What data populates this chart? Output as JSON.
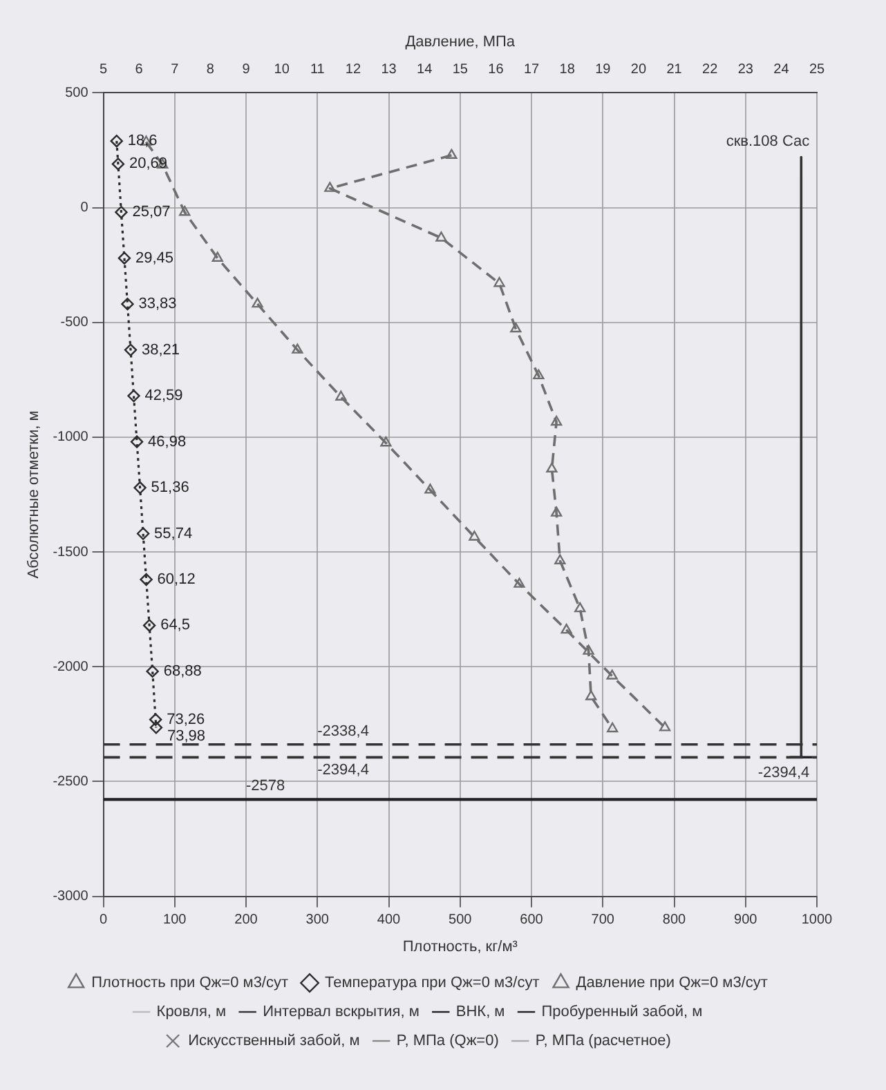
{
  "chart_data": {
    "type": "line",
    "xlabel": "Плотность, кг/м³",
    "ylabel": "Абсолютные отметки, м",
    "x2label": "Давление, МПа",
    "xlim": [
      0,
      1000
    ],
    "xticks": [
      0,
      100,
      200,
      300,
      400,
      500,
      600,
      700,
      800,
      900,
      1000
    ],
    "x2lim": [
      5,
      25
    ],
    "x2ticks": [
      5,
      6,
      7,
      8,
      9,
      10,
      11,
      12,
      13,
      14,
      15,
      16,
      17,
      18,
      19,
      20,
      21,
      22,
      23,
      24,
      25
    ],
    "ylim": [
      -3000,
      500
    ],
    "yticks": [
      500,
      0,
      -500,
      -1000,
      -1500,
      -2000,
      -2500,
      -3000
    ],
    "grid": true,
    "legend": "bottom",
    "series": [
      {
        "name": "Плотность при Qж=0 м3/сут",
        "color": "#6e6e6e",
        "marker": "triangle",
        "line_style": "dashed",
        "x": [
          60,
          83,
          114,
          160,
          216,
          272,
          333,
          396,
          458,
          520,
          583,
          649,
          713,
          787
        ],
        "values": [
          286,
          186,
          -20,
          -220,
          -420,
          -620,
          -825,
          -1025,
          -1230,
          -1435,
          -1640,
          -1840,
          -2040,
          -2265
        ]
      },
      {
        "name": "Температура при Qж=0 м3/сут",
        "color": "#2b2b2b",
        "marker": "diamond",
        "line_style": "dotted",
        "x": [
          18.6,
          20.69,
          25.07,
          29.45,
          33.83,
          38.21,
          42.59,
          46.98,
          51.36,
          55.74,
          60.12,
          64.5,
          68.88,
          73.26,
          73.98
        ],
        "values": [
          290,
          190,
          -20,
          -220,
          -420,
          -620,
          -820,
          -1020,
          -1220,
          -1420,
          -1620,
          -1820,
          -2020,
          -2230,
          -2265
        ]
      },
      {
        "name": "Давление при Qж=0 м3/сут",
        "axis": "x2",
        "color": "#6e6e6e",
        "marker": "triangle",
        "line_style": "dashed",
        "x": [
          14.76,
          11.35,
          14.47,
          16.1,
          16.56,
          17.2,
          17.7,
          17.57,
          17.7,
          17.8,
          18.36,
          18.6,
          18.67,
          19.27
        ],
        "values": [
          228,
          84,
          -132,
          -330,
          -528,
          -732,
          -934,
          -1138,
          -1330,
          -1538,
          -1747,
          -1932,
          -2130,
          -2270
        ]
      },
      {
        "name": "Кровля, м",
        "color": "#bbbbbb",
        "line_style": "solid"
      },
      {
        "name": "Интервал вскрытия, м",
        "color": "#333333",
        "line_style": "dashed"
      },
      {
        "name": "ВНК, м",
        "color": "#222222",
        "line_style": "solid"
      },
      {
        "name": "Пробуренный забой, м",
        "color": "#222222",
        "line_style": "solid",
        "x": [
          962,
          994
        ],
        "values": [
          -2394,
          -2394
        ]
      },
      {
        "name": "Искусственный забой, м",
        "type": "scatter",
        "color": "#777777",
        "marker": "cross"
      },
      {
        "name": "P, МПа (Qж=0)",
        "color": "#888888",
        "line_style": "solid"
      },
      {
        "name": "P, МПа (расчетное)",
        "color": "#aaaaaa",
        "line_style": "dotted"
      },
      {
        "color": "#333333",
        "line_style": "solid",
        "x": [
          978,
          978
        ],
        "values": [
          220,
          -2394
        ]
      }
    ],
    "ref_lines": [
      {
        "axis": "y",
        "value": -2338.4,
        "label": "-2338,4",
        "color": "#333333",
        "line_style": "dashed"
      },
      {
        "axis": "y",
        "value": -2394.4,
        "label": "-2394,4",
        "color": "#333333",
        "line_style": "dashed"
      },
      {
        "axis": "y",
        "value": -2578,
        "label": "-2578",
        "color": "#222222",
        "line_style": "solid"
      }
    ],
    "annotations": [
      {
        "text": "скв.108 Сас",
        "x": 978,
        "y": 220
      },
      {
        "text": "-2394,4",
        "x": 978,
        "y": -2394
      },
      {
        "text": "18,6",
        "x": 18.6,
        "y": 290
      },
      {
        "text": "20,69",
        "x": 20.69,
        "y": 190
      },
      {
        "text": "25,07",
        "x": 25.07,
        "y": -20
      },
      {
        "text": "29,45",
        "x": 29.45,
        "y": -220
      },
      {
        "text": "33,83",
        "x": 33.83,
        "y": -420
      },
      {
        "text": "38,21",
        "x": 38.21,
        "y": -620
      },
      {
        "text": "42,59",
        "x": 42.59,
        "y": -820
      },
      {
        "text": "46,98",
        "x": 46.98,
        "y": -1020
      },
      {
        "text": "51,36",
        "x": 51.36,
        "y": -1220
      },
      {
        "text": "55,74",
        "x": 55.74,
        "y": -1420
      },
      {
        "text": "60,12",
        "x": 60.12,
        "y": -1620
      },
      {
        "text": "64,5",
        "x": 64.5,
        "y": -1820
      },
      {
        "text": "68,88",
        "x": 68.88,
        "y": -2020
      },
      {
        "text": "73,26",
        "x": 73.26,
        "y": -2230
      },
      {
        "text": "73,98",
        "x": 73.98,
        "y": -2265
      }
    ]
  }
}
